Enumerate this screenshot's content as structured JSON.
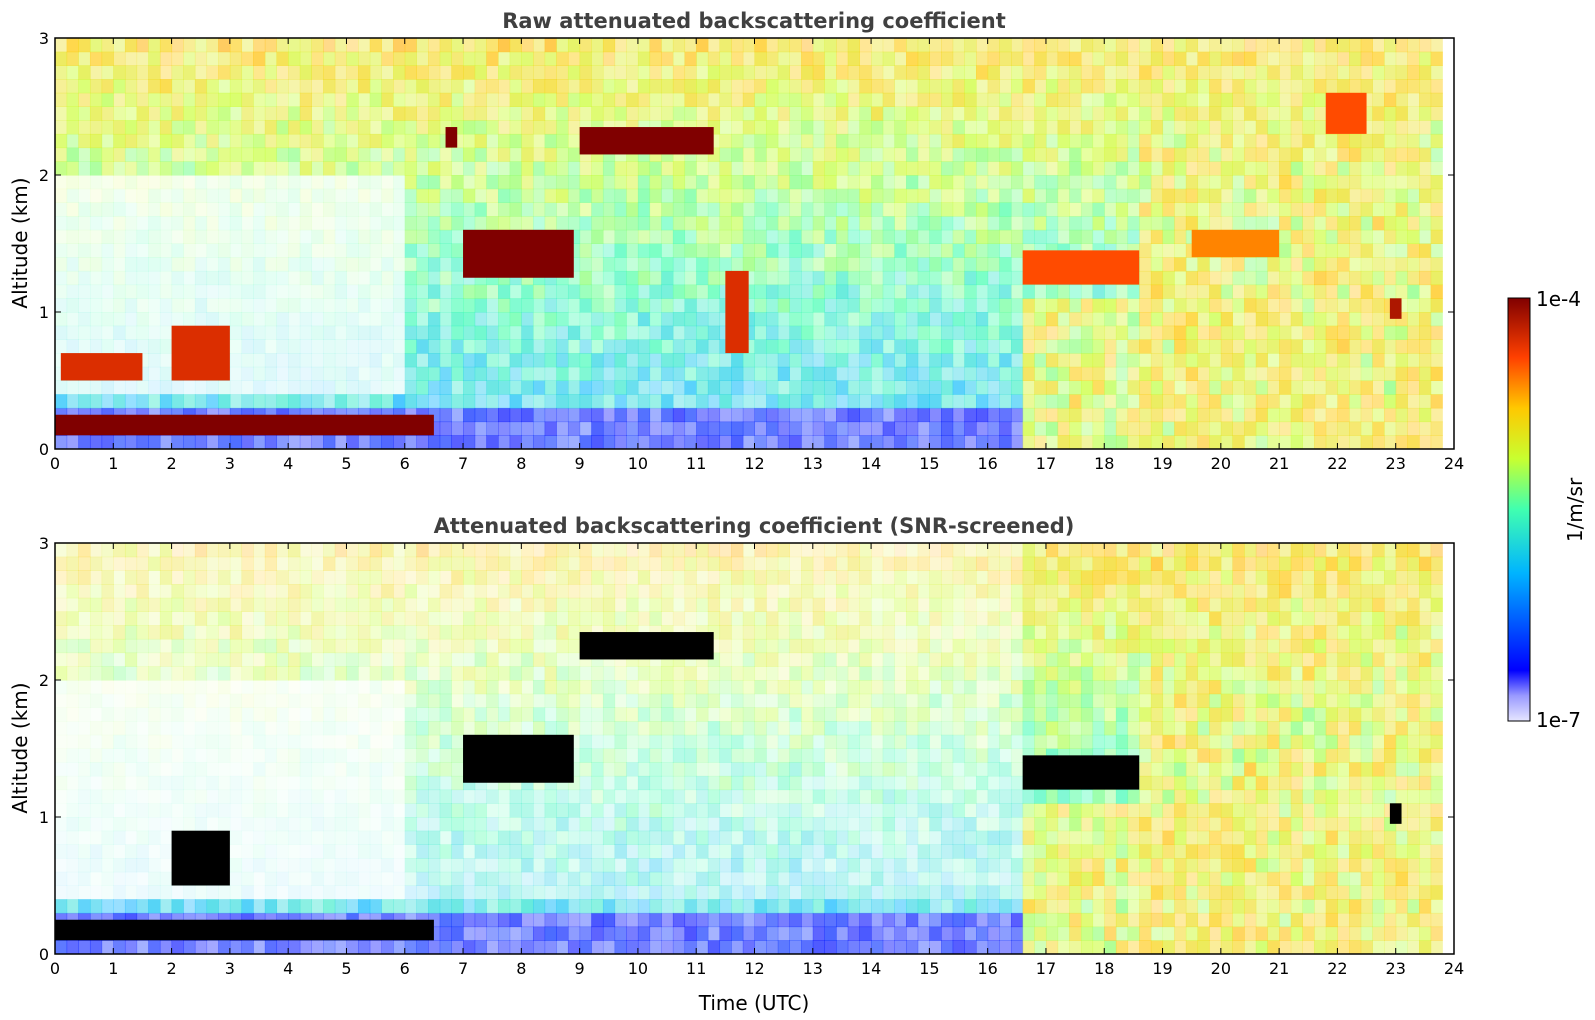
{
  "chart_data": [
    {
      "type": "heatmap",
      "title": "Raw attenuated backscattering coefficient",
      "xlabel": "",
      "ylabel": "Altitude (km)",
      "xlim": [
        0,
        24
      ],
      "ylim": [
        0,
        3
      ],
      "xticks": [
        "0",
        "1",
        "2",
        "3",
        "4",
        "5",
        "6",
        "7",
        "8",
        "9",
        "10",
        "11",
        "12",
        "13",
        "14",
        "15",
        "16",
        "17",
        "18",
        "19",
        "20",
        "21",
        "22",
        "23",
        "24"
      ],
      "yticks": [
        "0",
        "1",
        "2",
        "3"
      ],
      "layers": [
        {
          "x": [
            0,
            6.5
          ],
          "y": [
            0.1,
            0.25
          ],
          "level": 1.0
        },
        {
          "x": [
            0.1,
            1.5
          ],
          "y": [
            0.5,
            0.7
          ],
          "level": 0.9
        },
        {
          "x": [
            2.0,
            3.0
          ],
          "y": [
            0.5,
            0.9
          ],
          "level": 0.9
        },
        {
          "x": [
            6.7,
            6.9
          ],
          "y": [
            2.2,
            2.35
          ],
          "level": 1.0
        },
        {
          "x": [
            7.0,
            8.9
          ],
          "y": [
            1.25,
            1.6
          ],
          "level": 1.0
        },
        {
          "x": [
            9.0,
            11.3
          ],
          "y": [
            2.15,
            2.35
          ],
          "level": 1.0
        },
        {
          "x": [
            11.5,
            11.9
          ],
          "y": [
            0.7,
            1.3
          ],
          "level": 0.9
        },
        {
          "x": [
            16.6,
            18.6
          ],
          "y": [
            1.2,
            1.45
          ],
          "level": 0.85
        },
        {
          "x": [
            19.5,
            21.0
          ],
          "y": [
            1.4,
            1.6
          ],
          "level": 0.8
        },
        {
          "x": [
            21.8,
            22.5
          ],
          "y": [
            2.3,
            2.6
          ],
          "level": 0.85
        },
        {
          "x": [
            22.9,
            23.1
          ],
          "y": [
            0.95,
            1.1
          ],
          "level": 0.95
        }
      ]
    },
    {
      "type": "heatmap",
      "title": "Attenuated backscattering coefficient (SNR-screened)",
      "xlabel": "Time (UTC)",
      "ylabel": "Altitude (km)",
      "xlim": [
        0,
        24
      ],
      "ylim": [
        0,
        3
      ],
      "xticks": [
        "0",
        "1",
        "2",
        "3",
        "4",
        "5",
        "6",
        "7",
        "8",
        "9",
        "10",
        "11",
        "12",
        "13",
        "14",
        "15",
        "16",
        "17",
        "18",
        "19",
        "20",
        "21",
        "22",
        "23",
        "24"
      ],
      "yticks": [
        "0",
        "1",
        "2",
        "3"
      ],
      "layers": [
        {
          "x": [
            0,
            6.5
          ],
          "y": [
            0.1,
            0.25
          ],
          "level": 1.0
        },
        {
          "x": [
            2.0,
            3.0
          ],
          "y": [
            0.5,
            0.9
          ],
          "level": 1.0
        },
        {
          "x": [
            7.0,
            8.9
          ],
          "y": [
            1.25,
            1.6
          ],
          "level": 1.0
        },
        {
          "x": [
            9.0,
            11.3
          ],
          "y": [
            2.15,
            2.35
          ],
          "level": 1.0
        },
        {
          "x": [
            16.6,
            18.6
          ],
          "y": [
            1.2,
            1.45
          ],
          "level": 1.0
        },
        {
          "x": [
            22.9,
            23.1
          ],
          "y": [
            0.95,
            1.1
          ],
          "level": 1.0
        }
      ]
    }
  ],
  "colorbar": {
    "label": "1/m/sr",
    "max_label": "1e-4",
    "min_label": "1e-7",
    "colormap": "jet"
  }
}
